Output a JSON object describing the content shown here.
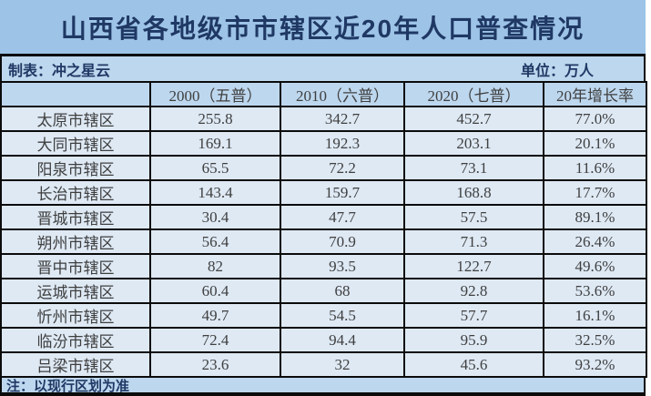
{
  "title": "山西省各地级市市辖区近20年人口普查情况",
  "meta": {
    "left": "制表：冲之星云",
    "right": "单位：万人"
  },
  "table": {
    "headers": [
      "",
      "2000（五普）",
      "2010（六普）",
      "2020（七普）",
      "20年增长率"
    ],
    "rows": [
      [
        "太原市辖区",
        "255.8",
        "342.7",
        "452.7",
        "77.0%"
      ],
      [
        "大同市辖区",
        "169.1",
        "192.3",
        "203.1",
        "20.1%"
      ],
      [
        "阳泉市辖区",
        "65.5",
        "72.2",
        "73.1",
        "11.6%"
      ],
      [
        "长治市辖区",
        "143.4",
        "159.7",
        "168.8",
        "17.7%"
      ],
      [
        "晋城市辖区",
        "30.4",
        "47.7",
        "57.5",
        "89.1%"
      ],
      [
        "朔州市辖区",
        "56.4",
        "70.9",
        "71.3",
        "26.4%"
      ],
      [
        "晋中市辖区",
        "82",
        "93.5",
        "122.7",
        "49.6%"
      ],
      [
        "运城市辖区",
        "60.4",
        "68",
        "92.8",
        "53.6%"
      ],
      [
        "忻州市辖区",
        "49.7",
        "54.5",
        "57.7",
        "16.1%"
      ],
      [
        "临汾市辖区",
        "72.4",
        "94.4",
        "95.9",
        "32.5%"
      ],
      [
        "吕梁市辖区",
        "23.6",
        "32",
        "45.6",
        "93.2%"
      ]
    ]
  },
  "footnote": "注：以现行区划为准",
  "colors": {
    "title_bg": "#9DC3E6",
    "band_bg": "#BDD7EE",
    "row_bg": "#DEE9F4",
    "border": "#0B0B0B",
    "heading_text": "#1F3864",
    "data_text": "#3F3F3F"
  },
  "chart_data": {
    "type": "table",
    "title": "山西省各地级市市辖区近20年人口普查情况",
    "unit": "万人",
    "note": "注：以现行区划为准",
    "categories": [
      "太原市辖区",
      "大同市辖区",
      "阳泉市辖区",
      "长治市辖区",
      "晋城市辖区",
      "朔州市辖区",
      "晋中市辖区",
      "运城市辖区",
      "忻州市辖区",
      "临汾市辖区",
      "吕梁市辖区"
    ],
    "series": [
      {
        "name": "2000（五普）",
        "values": [
          255.8,
          169.1,
          65.5,
          143.4,
          30.4,
          56.4,
          82,
          60.4,
          49.7,
          72.4,
          23.6
        ]
      },
      {
        "name": "2010（六普）",
        "values": [
          342.7,
          192.3,
          72.2,
          159.7,
          47.7,
          70.9,
          93.5,
          68,
          54.5,
          94.4,
          32
        ]
      },
      {
        "name": "2020（七普）",
        "values": [
          452.7,
          203.1,
          73.1,
          168.8,
          57.5,
          71.3,
          122.7,
          92.8,
          57.7,
          95.9,
          45.6
        ]
      },
      {
        "name": "20年增长率",
        "values": [
          "77.0%",
          "20.1%",
          "11.6%",
          "17.7%",
          "89.1%",
          "26.4%",
          "49.6%",
          "53.6%",
          "16.1%",
          "32.5%",
          "93.2%"
        ]
      }
    ]
  }
}
